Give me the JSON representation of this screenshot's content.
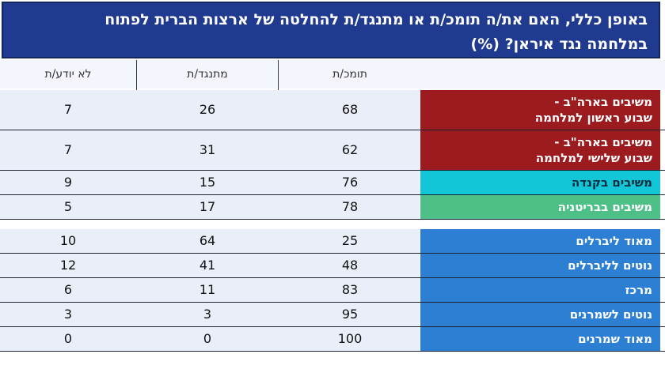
{
  "chart_data": {
    "type": "table",
    "title_line1": "באופן כללי, האם את/ה תומכ/ת או מתנגד/ת להחלטה של ארצות הברית לפתוח",
    "title_line2": "במלחמה נגד איראן? (%)",
    "columns": [
      "תומכ/ת",
      "מתנגד/ת",
      "לא יודע/ת"
    ],
    "groups": [
      {
        "rows": [
          {
            "label_lines": [
              "משיבים בארה\"ב -",
              "שבוע ראשון למלחמה"
            ],
            "values": [
              68,
              26,
              7
            ],
            "color": "#9b1b1f"
          },
          {
            "label_lines": [
              "משיבים בארה\"ב -",
              "שבוע שלישי למלחמה"
            ],
            "values": [
              62,
              31,
              7
            ],
            "color": "#9b1b1f"
          },
          {
            "label_lines": [
              "משיבים בקנדה"
            ],
            "values": [
              76,
              15,
              9
            ],
            "color": "#12c6d8"
          },
          {
            "label_lines": [
              "משיבים בבריטניה"
            ],
            "values": [
              78,
              17,
              5
            ],
            "color": "#4dbf87"
          }
        ]
      },
      {
        "rows": [
          {
            "label_lines": [
              "מאוד ליברלים"
            ],
            "values": [
              25,
              64,
              10
            ],
            "color": "#2c7fd2"
          },
          {
            "label_lines": [
              "נוטים לליברלים"
            ],
            "values": [
              48,
              41,
              12
            ],
            "color": "#2c7fd2"
          },
          {
            "label_lines": [
              "מרכז"
            ],
            "values": [
              83,
              11,
              6
            ],
            "color": "#2c7fd2"
          },
          {
            "label_lines": [
              "נוטים לשמרנים"
            ],
            "values": [
              95,
              3,
              3
            ],
            "color": "#2c7fd2"
          },
          {
            "label_lines": [
              "מאוד שמרנים"
            ],
            "values": [
              100,
              0,
              0
            ],
            "color": "#2c7fd2"
          }
        ]
      }
    ]
  }
}
